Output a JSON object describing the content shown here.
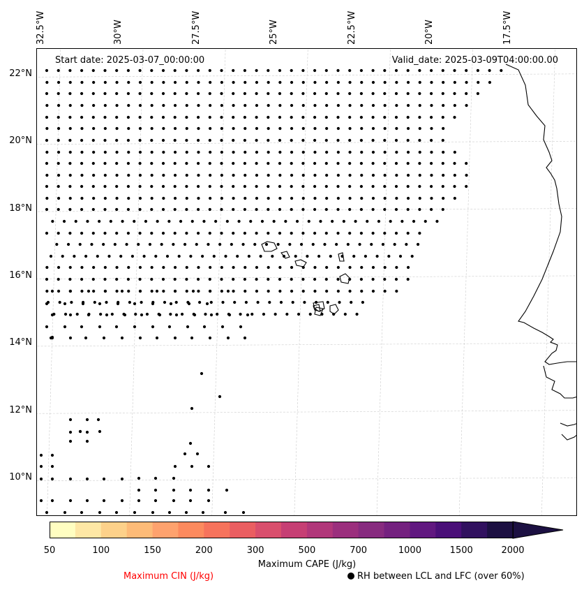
{
  "map": {
    "start_date": "Start date: 2025-03-07_00:00:00",
    "valid_date": "Valid_date: 2025-03-09T04:00:00.00",
    "lon_labels": [
      "32.5°W",
      "30°W",
      "27.5°W",
      "25°W",
      "22.5°W",
      "20°W",
      "17.5°W"
    ],
    "lat_labels": [
      "22°N",
      "20°N",
      "18°N",
      "16°N",
      "14°N",
      "12°N",
      "10°N"
    ],
    "extent": {
      "lon_min": -33.0,
      "lon_max": -16.6,
      "lat_min": 8.9,
      "lat_max": 22.8
    },
    "gridlines": true,
    "coastline_color": "#000000"
  },
  "colorbar": {
    "label": "Maximum CAPE (J/kg)",
    "tick_labels": [
      "50",
      "100",
      "150",
      "200",
      "300",
      "500",
      "700",
      "1000",
      "1500",
      "2000"
    ],
    "colors": [
      "#fffec1",
      "#fee7a5",
      "#fdd18a",
      "#fdbb78",
      "#fea26e",
      "#fc8a5e",
      "#f6735c",
      "#ea5e61",
      "#d94f6d",
      "#c63f74",
      "#b1377a",
      "#9b2f7d",
      "#872b7f",
      "#74217f",
      "#611880",
      "#4a0f78",
      "#31115f",
      "#1c1042"
    ],
    "extend": "max"
  },
  "legend": {
    "cin_label": "Maximum CIN (J/kg)",
    "cin_color": "#ff0000",
    "rh_label": "RH between LCL and LFC (over 60%)"
  }
}
